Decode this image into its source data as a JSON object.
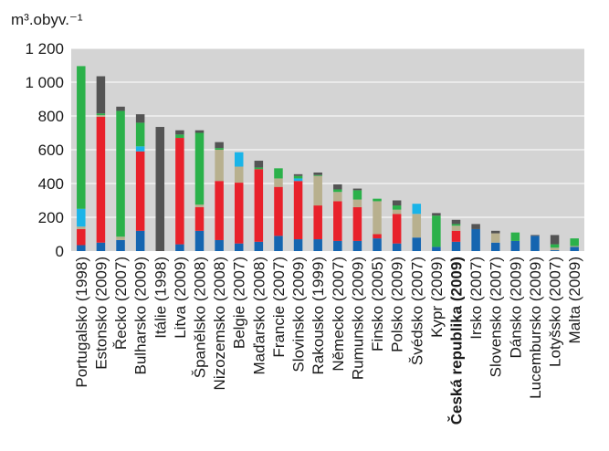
{
  "chart_data": {
    "type": "bar",
    "stacked": true,
    "unit_label": "m³.obyv.⁻¹",
    "ylim": [
      0,
      1200
    ],
    "yticks": [
      0,
      200,
      400,
      600,
      800,
      1000,
      1200
    ],
    "ytick_labels": [
      "0",
      "200",
      "400",
      "600",
      "800",
      "1 000",
      "1 200"
    ],
    "plot_background": "#d4d4d4",
    "grid": true,
    "categories": [
      "Portugalsko (1998)",
      "Estonsko (2009)",
      "Řecko (2007)",
      "Bulharsko (2009)",
      "Itálie (1998)",
      "Litva (2009)",
      "Španělsko (2008)",
      "Nizozemsko (2008)",
      "Belgie (2007)",
      "Maďarsko (2008)",
      "Francie (2007)",
      "Slovinsko (2009)",
      "Rakousko (1999)",
      "Německo (2007)",
      "Rumunsko (2009)",
      "Finsko (2005)",
      "Polsko (2009)",
      "Švédsko (2007)",
      "Kypr (2009)",
      "Česká republika (2009)",
      "Irsko (2007)",
      "Slovensko (2007)",
      "Dánsko (2009)",
      "Lucembursko (2009)",
      "Lotyšsko (2007)",
      "Malta (2009)"
    ],
    "bold_category": "Česká republika (2009)",
    "series": [
      {
        "color": "#1565b0",
        "values": [
          35,
          50,
          65,
          120,
          0,
          40,
          120,
          65,
          45,
          55,
          90,
          70,
          70,
          60,
          60,
          75,
          45,
          80,
          25,
          55,
          130,
          50,
          60,
          90,
          5,
          25
        ]
      },
      {
        "color": "#e8212b",
        "values": [
          95,
          745,
          0,
          470,
          0,
          630,
          140,
          350,
          360,
          430,
          290,
          345,
          200,
          235,
          200,
          25,
          175,
          0,
          0,
          65,
          0,
          0,
          0,
          0,
          0,
          0
        ]
      },
      {
        "color": "#b8b08e",
        "values": [
          15,
          10,
          20,
          0,
          0,
          0,
          15,
          185,
          95,
          0,
          50,
          0,
          175,
          55,
          45,
          195,
          25,
          140,
          0,
          30,
          0,
          55,
          0,
          0,
          15,
          5
        ]
      },
      {
        "color": "#1ab4e8",
        "values": [
          105,
          0,
          0,
          30,
          0,
          0,
          0,
          0,
          85,
          0,
          0,
          15,
          0,
          0,
          0,
          0,
          0,
          60,
          0,
          0,
          0,
          0,
          0,
          0,
          0,
          0
        ]
      },
      {
        "color": "#2bb14a",
        "values": [
          845,
          10,
          745,
          140,
          0,
          20,
          425,
          10,
          0,
          10,
          60,
          15,
          5,
          15,
          55,
          15,
          25,
          0,
          185,
          10,
          0,
          0,
          50,
          0,
          20,
          45
        ]
      },
      {
        "color": "#545454",
        "values": [
          0,
          220,
          25,
          50,
          735,
          25,
          15,
          35,
          0,
          40,
          0,
          10,
          15,
          30,
          10,
          0,
          30,
          0,
          15,
          25,
          30,
          15,
          0,
          5,
          55,
          0
        ]
      }
    ]
  }
}
